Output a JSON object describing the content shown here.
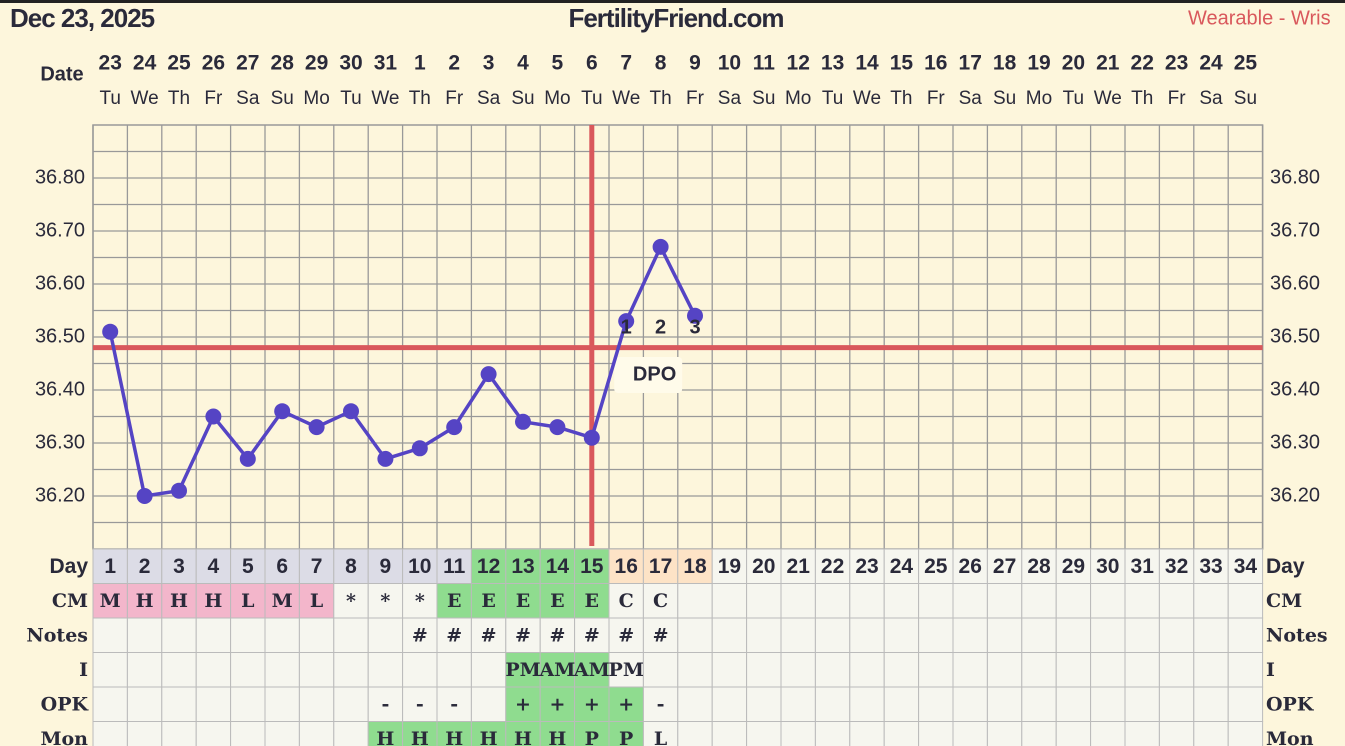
{
  "header": {
    "date": "Dec 23, 2025",
    "site": "FertilityFriend.com",
    "source": "Wearable - Wris"
  },
  "chart_data": {
    "type": "line",
    "x_label": "Date",
    "categories": [
      23,
      24,
      25,
      26,
      27,
      28,
      29,
      30,
      31,
      1,
      2,
      3,
      4,
      5,
      6,
      7,
      8,
      9,
      10,
      11,
      12,
      13,
      14,
      15,
      16,
      17,
      18,
      19,
      20,
      21,
      22,
      23,
      24,
      25
    ],
    "weekdays": [
      "Tu",
      "We",
      "Th",
      "Fr",
      "Sa",
      "Su",
      "Mo",
      "Tu",
      "We",
      "Th",
      "Fr",
      "Sa",
      "Su",
      "Mo",
      "Tu",
      "We",
      "Th",
      "Fr",
      "Sa",
      "Su",
      "Mo",
      "Tu",
      "We",
      "Th",
      "Fr",
      "Sa",
      "Su",
      "Mo",
      "Tu",
      "We",
      "Th",
      "Fr",
      "Sa",
      "Su"
    ],
    "series": [
      {
        "color": "#5544c4",
        "values": [
          36.51,
          36.2,
          36.21,
          36.35,
          36.27,
          36.36,
          36.33,
          36.36,
          36.27,
          36.29,
          36.33,
          36.43,
          36.34,
          36.33,
          36.31,
          36.53,
          36.67,
          36.54,
          null,
          null,
          null,
          null,
          null,
          null,
          null,
          null,
          null,
          null,
          null,
          null,
          null,
          null,
          null,
          null
        ]
      }
    ],
    "ylim": [
      36.1,
      36.9
    ],
    "yticks": [
      {
        "value": 36.2,
        "label": "36.20"
      },
      {
        "value": 36.3,
        "label": "36.30"
      },
      {
        "value": 36.4,
        "label": "36.40"
      },
      {
        "value": 36.5,
        "label": "36.50"
      },
      {
        "value": 36.6,
        "label": "36.60"
      },
      {
        "value": 36.7,
        "label": "36.70"
      },
      {
        "value": 36.8,
        "label": "36.80"
      }
    ],
    "grid": true,
    "coverline": {
      "value": 36.48,
      "color": "#d9585c"
    },
    "ovulation_day": 15,
    "dpo": [
      null,
      null,
      null,
      null,
      null,
      null,
      null,
      null,
      null,
      null,
      null,
      null,
      null,
      null,
      null,
      1,
      2,
      3,
      null,
      null,
      null,
      null,
      null,
      null,
      null,
      null,
      null,
      null,
      null,
      null,
      null,
      null,
      null,
      null
    ],
    "dpo_label": "DPO"
  },
  "table": {
    "rows": [
      {
        "label": "Day",
        "cells": [
          1,
          2,
          3,
          4,
          5,
          6,
          7,
          8,
          9,
          10,
          11,
          12,
          13,
          14,
          15,
          16,
          17,
          18,
          19,
          20,
          21,
          22,
          23,
          24,
          25,
          26,
          27,
          28,
          29,
          30,
          31,
          32,
          33,
          34
        ],
        "colors": [
          "#dcdce6",
          "#dcdce6",
          "#dcdce6",
          "#dcdce6",
          "#dcdce6",
          "#dcdce6",
          "#dcdce6",
          "#dcdce6",
          "#dcdce6",
          "#dcdce6",
          "#dcdce6",
          "#8fdc8f",
          "#8fdc8f",
          "#8fdc8f",
          "#8fdc8f",
          "#fde3c6",
          "#fde3c6",
          "#fde3c6",
          null,
          null,
          null,
          null,
          null,
          null,
          null,
          null,
          null,
          null,
          null,
          null,
          null,
          null,
          null,
          null
        ]
      },
      {
        "label": "CM",
        "cells": [
          "M",
          "H",
          "H",
          "H",
          "L",
          "M",
          "L",
          "*",
          "*",
          "*",
          "E",
          "E",
          "E",
          "E",
          "E",
          "C",
          "C",
          null,
          null,
          null,
          null,
          null,
          null,
          null,
          null,
          null,
          null,
          null,
          null,
          null,
          null,
          null,
          null,
          null
        ],
        "colors": [
          "#f3b6cb",
          "#f3b6cb",
          "#f3b6cb",
          "#f3b6cb",
          "#f3b6cb",
          "#f3b6cb",
          "#f3b6cb",
          null,
          null,
          null,
          "#8fdc8f",
          "#8fdc8f",
          "#8fdc8f",
          "#8fdc8f",
          "#8fdc8f",
          null,
          null,
          null,
          null,
          null,
          null,
          null,
          null,
          null,
          null,
          null,
          null,
          null,
          null,
          null,
          null,
          null,
          null,
          null
        ]
      },
      {
        "label": "Notes",
        "cells": [
          null,
          null,
          null,
          null,
          null,
          null,
          null,
          null,
          null,
          "#",
          "#",
          "#",
          "#",
          "#",
          "#",
          "#",
          "#",
          null,
          null,
          null,
          null,
          null,
          null,
          null,
          null,
          null,
          null,
          null,
          null,
          null,
          null,
          null,
          null,
          null
        ],
        "colors": [
          null,
          null,
          null,
          null,
          null,
          null,
          null,
          null,
          null,
          null,
          null,
          null,
          null,
          null,
          null,
          null,
          null,
          null,
          null,
          null,
          null,
          null,
          null,
          null,
          null,
          null,
          null,
          null,
          null,
          null,
          null,
          null,
          null,
          null
        ]
      },
      {
        "label": "I",
        "cells": [
          null,
          null,
          null,
          null,
          null,
          null,
          null,
          null,
          null,
          null,
          null,
          null,
          "PM",
          "AM",
          "AM",
          "PM",
          null,
          null,
          null,
          null,
          null,
          null,
          null,
          null,
          null,
          null,
          null,
          null,
          null,
          null,
          null,
          null,
          null,
          null
        ],
        "colors": [
          null,
          null,
          null,
          null,
          null,
          null,
          null,
          null,
          null,
          null,
          null,
          null,
          "#8fdc8f",
          "#8fdc8f",
          "#8fdc8f",
          null,
          null,
          null,
          null,
          null,
          null,
          null,
          null,
          null,
          null,
          null,
          null,
          null,
          null,
          null,
          null,
          null,
          null,
          null
        ]
      },
      {
        "label": "OPK",
        "cells": [
          null,
          null,
          null,
          null,
          null,
          null,
          null,
          null,
          "-",
          "-",
          "-",
          null,
          "+",
          "+",
          "+",
          "+",
          "-",
          null,
          null,
          null,
          null,
          null,
          null,
          null,
          null,
          null,
          null,
          null,
          null,
          null,
          null,
          null,
          null,
          null
        ],
        "colors": [
          null,
          null,
          null,
          null,
          null,
          null,
          null,
          null,
          null,
          null,
          null,
          null,
          "#8fdc8f",
          "#8fdc8f",
          "#8fdc8f",
          "#8fdc8f",
          null,
          null,
          null,
          null,
          null,
          null,
          null,
          null,
          null,
          null,
          null,
          null,
          null,
          null,
          null,
          null,
          null,
          null
        ]
      },
      {
        "label": "Mon",
        "cells": [
          null,
          null,
          null,
          null,
          null,
          null,
          null,
          null,
          "H",
          "H",
          "H",
          "H",
          "H",
          "H",
          "P",
          "P",
          "L",
          null,
          null,
          null,
          null,
          null,
          null,
          null,
          null,
          null,
          null,
          null,
          null,
          null,
          null,
          null,
          null,
          null
        ],
        "colors": [
          null,
          null,
          null,
          null,
          null,
          null,
          null,
          null,
          "#8fdc8f",
          "#8fdc8f",
          "#8fdc8f",
          "#8fdc8f",
          "#8fdc8f",
          "#8fdc8f",
          "#8fdc8f",
          "#8fdc8f",
          null,
          null,
          null,
          null,
          null,
          null,
          null,
          null,
          null,
          null,
          null,
          null,
          null,
          null,
          null,
          null,
          null,
          null
        ]
      }
    ]
  }
}
